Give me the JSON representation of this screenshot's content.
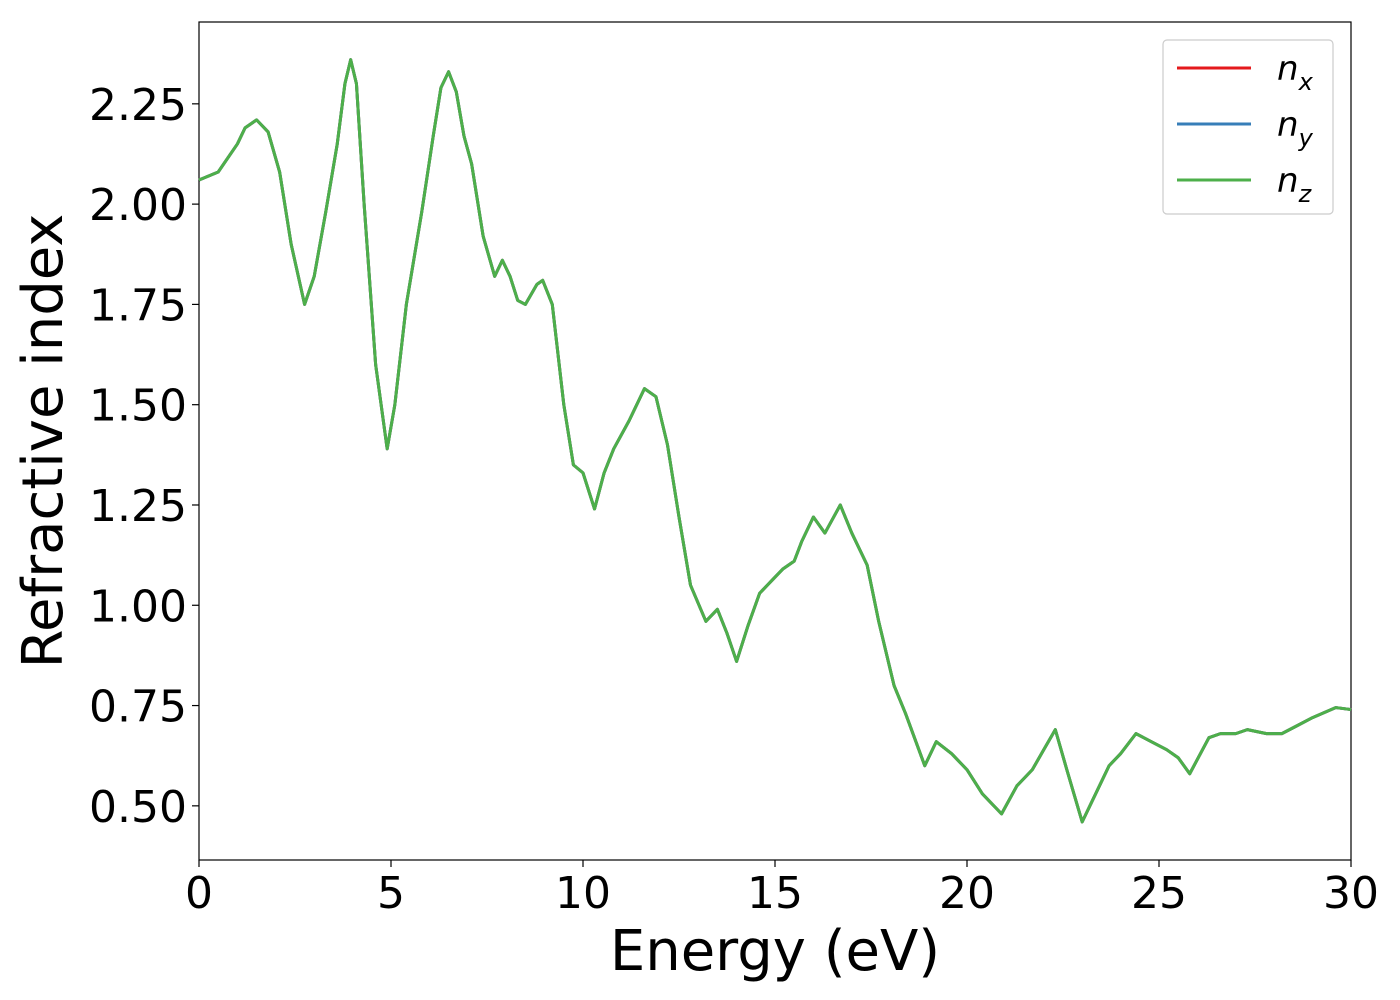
{
  "chart_data": {
    "type": "line",
    "x_label": "Energy (eV)",
    "y_label": "Refractive index",
    "x": [
      0,
      0.5,
      1.0,
      1.2,
      1.5,
      1.8,
      2.1,
      2.4,
      2.75,
      3.0,
      3.3,
      3.6,
      3.8,
      3.95,
      4.1,
      4.3,
      4.6,
      4.9,
      5.1,
      5.4,
      5.8,
      6.1,
      6.3,
      6.5,
      6.7,
      6.9,
      7.1,
      7.4,
      7.7,
      7.9,
      8.1,
      8.3,
      8.5,
      8.8,
      8.95,
      9.2,
      9.5,
      9.75,
      10.0,
      10.3,
      10.55,
      10.8,
      11.2,
      11.6,
      11.9,
      12.2,
      12.5,
      12.8,
      13.2,
      13.5,
      13.75,
      14.0,
      14.3,
      14.6,
      14.9,
      15.2,
      15.5,
      15.7,
      16.0,
      16.3,
      16.7,
      17.0,
      17.4,
      17.7,
      18.1,
      18.4,
      18.9,
      19.2,
      19.6,
      20.0,
      20.4,
      20.9,
      21.3,
      21.7,
      22.0,
      22.3,
      22.6,
      23.0,
      23.4,
      23.7,
      24.0,
      24.4,
      24.8,
      25.2,
      25.5,
      25.8,
      26.3,
      26.6,
      27.0,
      27.3,
      27.8,
      28.2,
      28.6,
      29.0,
      29.6,
      30
    ],
    "series": [
      {
        "name": "n_x",
        "color": "#e41a1c",
        "values": [
          2.06,
          2.08,
          2.15,
          2.19,
          2.21,
          2.18,
          2.08,
          1.9,
          1.75,
          1.82,
          1.98,
          2.15,
          2.3,
          2.36,
          2.3,
          2.0,
          1.6,
          1.39,
          1.5,
          1.75,
          1.98,
          2.17,
          2.29,
          2.33,
          2.28,
          2.17,
          2.1,
          1.92,
          1.82,
          1.86,
          1.82,
          1.76,
          1.75,
          1.8,
          1.81,
          1.75,
          1.5,
          1.35,
          1.33,
          1.24,
          1.33,
          1.39,
          1.46,
          1.54,
          1.52,
          1.4,
          1.22,
          1.05,
          0.96,
          0.99,
          0.93,
          0.86,
          0.95,
          1.03,
          1.06,
          1.09,
          1.11,
          1.16,
          1.22,
          1.18,
          1.25,
          1.18,
          1.1,
          0.96,
          0.8,
          0.73,
          0.6,
          0.66,
          0.63,
          0.59,
          0.53,
          0.48,
          0.55,
          0.59,
          0.64,
          0.69,
          0.59,
          0.46,
          0.54,
          0.6,
          0.63,
          0.68,
          0.66,
          0.64,
          0.62,
          0.58,
          0.67,
          0.68,
          0.68,
          0.69,
          0.68,
          0.68,
          0.7,
          0.72,
          0.745,
          0.74
        ]
      },
      {
        "name": "n_y",
        "color": "#377eb8",
        "values": [
          2.06,
          2.08,
          2.15,
          2.19,
          2.21,
          2.18,
          2.08,
          1.9,
          1.75,
          1.82,
          1.98,
          2.15,
          2.3,
          2.36,
          2.3,
          2.0,
          1.6,
          1.39,
          1.5,
          1.75,
          1.98,
          2.17,
          2.29,
          2.33,
          2.28,
          2.17,
          2.1,
          1.92,
          1.82,
          1.86,
          1.82,
          1.76,
          1.75,
          1.8,
          1.81,
          1.75,
          1.5,
          1.35,
          1.33,
          1.24,
          1.33,
          1.39,
          1.46,
          1.54,
          1.52,
          1.4,
          1.22,
          1.05,
          0.96,
          0.99,
          0.93,
          0.86,
          0.95,
          1.03,
          1.06,
          1.09,
          1.11,
          1.16,
          1.22,
          1.18,
          1.25,
          1.18,
          1.1,
          0.96,
          0.8,
          0.73,
          0.6,
          0.66,
          0.63,
          0.59,
          0.53,
          0.48,
          0.55,
          0.59,
          0.64,
          0.69,
          0.59,
          0.46,
          0.54,
          0.6,
          0.63,
          0.68,
          0.66,
          0.64,
          0.62,
          0.58,
          0.67,
          0.68,
          0.68,
          0.69,
          0.68,
          0.68,
          0.7,
          0.72,
          0.745,
          0.74
        ]
      },
      {
        "name": "n_z",
        "color": "#4daf4a",
        "values": [
          2.06,
          2.08,
          2.15,
          2.19,
          2.21,
          2.18,
          2.08,
          1.9,
          1.75,
          1.82,
          1.98,
          2.15,
          2.3,
          2.36,
          2.3,
          2.0,
          1.6,
          1.39,
          1.5,
          1.75,
          1.98,
          2.17,
          2.29,
          2.33,
          2.28,
          2.17,
          2.1,
          1.92,
          1.82,
          1.86,
          1.82,
          1.76,
          1.75,
          1.8,
          1.81,
          1.75,
          1.5,
          1.35,
          1.33,
          1.24,
          1.33,
          1.39,
          1.46,
          1.54,
          1.52,
          1.4,
          1.22,
          1.05,
          0.96,
          0.99,
          0.93,
          0.86,
          0.95,
          1.03,
          1.06,
          1.09,
          1.11,
          1.16,
          1.22,
          1.18,
          1.25,
          1.18,
          1.1,
          0.96,
          0.8,
          0.73,
          0.6,
          0.66,
          0.63,
          0.59,
          0.53,
          0.48,
          0.55,
          0.59,
          0.64,
          0.69,
          0.59,
          0.46,
          0.54,
          0.6,
          0.63,
          0.68,
          0.66,
          0.64,
          0.62,
          0.58,
          0.67,
          0.68,
          0.68,
          0.69,
          0.68,
          0.68,
          0.7,
          0.72,
          0.745,
          0.74
        ]
      }
    ],
    "xlim": [
      0,
      30
    ],
    "xticks": [
      0,
      5,
      10,
      15,
      20,
      25,
      30
    ],
    "ylim": [
      0.365,
      2.454
    ],
    "yticks": [
      {
        "value": 0.5,
        "label": "0.50"
      },
      {
        "value": 0.75,
        "label": "0.75"
      },
      {
        "value": 1.0,
        "label": "1.00"
      },
      {
        "value": 1.25,
        "label": "1.25"
      },
      {
        "value": 1.5,
        "label": "1.50"
      },
      {
        "value": 1.75,
        "label": "1.75"
      },
      {
        "value": 2.0,
        "label": "2.00"
      },
      {
        "value": 2.25,
        "label": "2.25"
      }
    ],
    "legend": "upper right",
    "grid": false
  }
}
